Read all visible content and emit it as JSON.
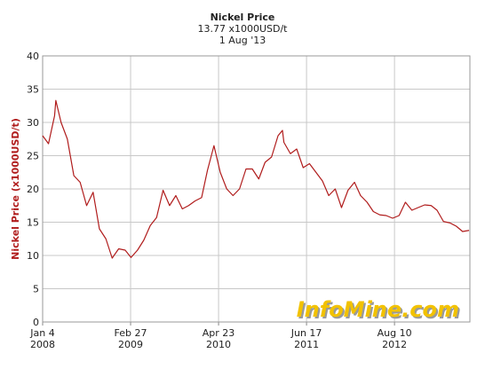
{
  "chart_data": {
    "type": "line",
    "title": "Nickel Price",
    "subtitle": "13.77 x1000USD/t",
    "date_label": "1 Aug '13",
    "ylabel": "Nickel Price (x1000USD/t)",
    "watermark": "InfoMine.com",
    "xlim": [
      "2008-01-04",
      "2013-08-05"
    ],
    "xticks": [
      {
        "value": "2008-01-04",
        "label": [
          "Jan 4",
          "2008"
        ]
      },
      {
        "value": "2009-02-27",
        "label": [
          "Feb 27",
          "2009"
        ]
      },
      {
        "value": "2010-04-23",
        "label": [
          "Apr 23",
          "2010"
        ]
      },
      {
        "value": "2011-06-17",
        "label": [
          "Jun 17",
          "2011"
        ]
      },
      {
        "value": "2012-08-10",
        "label": [
          "Aug 10",
          "2012"
        ]
      }
    ],
    "ylim": [
      0,
      40
    ],
    "yticks": [
      0,
      5,
      10,
      15,
      20,
      25,
      30,
      35,
      40
    ],
    "grid": true,
    "series": [
      {
        "name": "Nickel Price",
        "color": "#b01c1c",
        "x": [
          "2008-01-04",
          "2008-02-01",
          "2008-03-01",
          "2008-03-07",
          "2008-04-01",
          "2008-05-01",
          "2008-06-01",
          "2008-07-01",
          "2008-08-01",
          "2008-09-01",
          "2008-10-01",
          "2008-11-01",
          "2008-12-01",
          "2009-01-01",
          "2009-02-01",
          "2009-03-01",
          "2009-04-01",
          "2009-05-01",
          "2009-06-01",
          "2009-07-01",
          "2009-08-01",
          "2009-09-01",
          "2009-10-01",
          "2009-11-01",
          "2009-12-01",
          "2010-01-01",
          "2010-02-01",
          "2010-03-01",
          "2010-04-01",
          "2010-05-01",
          "2010-06-01",
          "2010-07-01",
          "2010-08-01",
          "2010-09-01",
          "2010-10-01",
          "2010-11-01",
          "2010-12-01",
          "2011-01-01",
          "2011-02-01",
          "2011-02-22",
          "2011-03-01",
          "2011-04-01",
          "2011-05-01",
          "2011-06-01",
          "2011-07-01",
          "2011-08-01",
          "2011-09-01",
          "2011-10-01",
          "2011-11-01",
          "2011-12-01",
          "2012-01-01",
          "2012-02-01",
          "2012-03-01",
          "2012-04-01",
          "2012-05-01",
          "2012-06-01",
          "2012-07-01",
          "2012-08-01",
          "2012-09-01",
          "2012-10-01",
          "2012-11-01",
          "2012-12-01",
          "2013-01-01",
          "2013-02-01",
          "2013-03-01",
          "2013-04-01",
          "2013-05-01",
          "2013-06-01",
          "2013-07-01",
          "2013-08-01"
        ],
        "values": [
          28,
          26.8,
          31,
          33.3,
          30,
          27.5,
          22,
          21,
          17.5,
          19.5,
          14,
          12.5,
          9.6,
          11,
          10.8,
          9.7,
          10.8,
          12.3,
          14.5,
          15.7,
          19.8,
          17.5,
          19,
          17,
          17.5,
          18.2,
          18.7,
          22.8,
          26.5,
          22.5,
          20,
          19,
          20,
          23,
          23,
          21.5,
          24,
          24.8,
          28,
          28.8,
          27,
          25.3,
          26,
          23.2,
          23.8,
          22.5,
          21.2,
          19,
          20,
          17.2,
          19.8,
          21,
          19,
          18,
          16.6,
          16.1,
          16,
          15.6,
          16,
          18,
          16.8,
          17.2,
          17.6,
          17.5,
          16.8,
          15.1,
          14.9,
          14.4,
          13.6,
          13.77
        ]
      }
    ]
  }
}
